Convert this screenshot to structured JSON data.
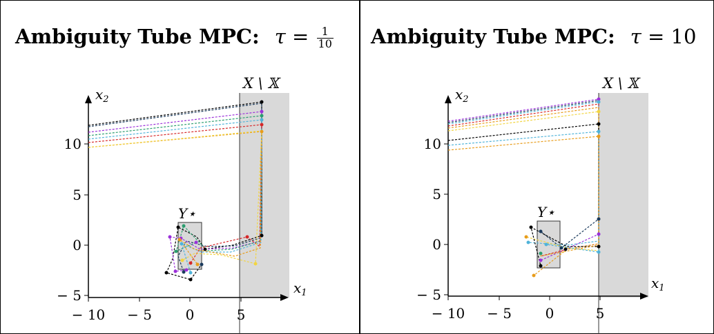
{
  "panels": [
    {
      "title_bold": "Ambiguity Tube MPC:",
      "tau_symbol": "τ =",
      "tau_num": "1",
      "tau_den": "10",
      "tau_text": "",
      "region_label": "X \\ 𝕏",
      "target_label": "Y⋆",
      "xlabel": "x",
      "xlabel_sub": "1",
      "ylabel": "x",
      "ylabel_sub": "2",
      "xticks": [
        "− 10",
        "− 5",
        "0",
        "5"
      ],
      "yticks": [
        "10",
        "5",
        "0",
        "− 5"
      ]
    },
    {
      "title_bold": "Ambiguity Tube MPC:",
      "tau_symbol": "τ =",
      "tau_num": "",
      "tau_den": "",
      "tau_text": "10",
      "region_label": "X \\ 𝕏",
      "target_label": "Y⋆",
      "xlabel": "x",
      "xlabel_sub": "1",
      "ylabel": "x",
      "ylabel_sub": "2",
      "xticks": [
        "− 10",
        "− 5",
        "0",
        "5"
      ],
      "yticks": [
        "10",
        "5",
        "0",
        "− 5"
      ]
    }
  ],
  "colors": {
    "obstacle": "#d9d9d9",
    "target_box": "#d9d9d9",
    "trajectories": [
      "#000000",
      "#1a3a5c",
      "#9b30d9",
      "#2a9d6e",
      "#4fb3d9",
      "#d62728",
      "#e89c1a",
      "#f2d541"
    ]
  }
}
